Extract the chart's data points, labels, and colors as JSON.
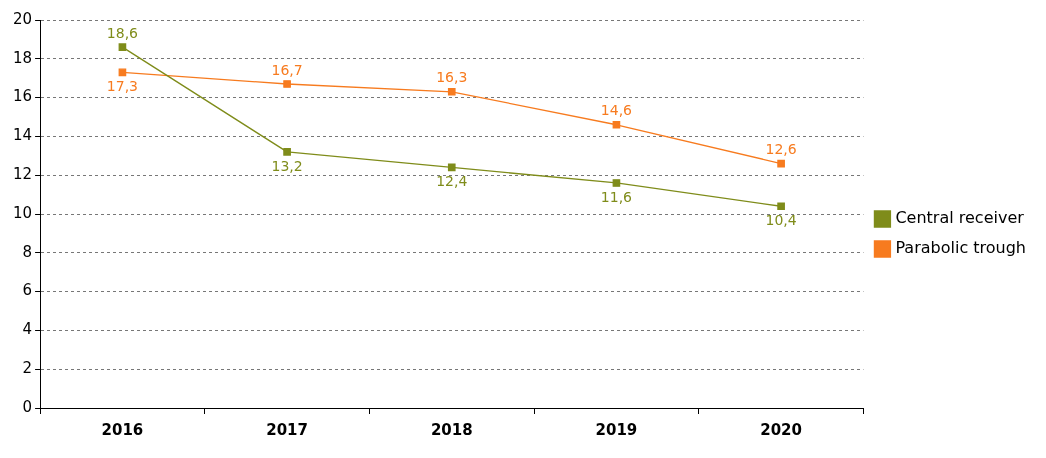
{
  "chart_data": {
    "type": "line",
    "categories": [
      "2016",
      "2017",
      "2018",
      "2019",
      "2020"
    ],
    "series": [
      {
        "name": "Central receiver",
        "color": "#7f8c1a",
        "values": [
          18.6,
          13.2,
          12.4,
          11.6,
          10.4
        ],
        "value_labels": [
          "18,6",
          "13,2",
          "12,4",
          "11,6",
          "10,4"
        ]
      },
      {
        "name": "Parabolic trough",
        "color": "#f77b1f",
        "values": [
          17.3,
          16.7,
          16.3,
          14.6,
          12.6
        ],
        "value_labels": [
          "17,3",
          "16,7",
          "16,3",
          "14,6",
          "12,6"
        ]
      }
    ],
    "ylim": [
      0,
      20
    ],
    "yticks": [
      0,
      2,
      4,
      6,
      8,
      10,
      12,
      14,
      16,
      18,
      20
    ],
    "grid": "y",
    "legend": "right",
    "marker": "square",
    "line_style": "solid"
  }
}
